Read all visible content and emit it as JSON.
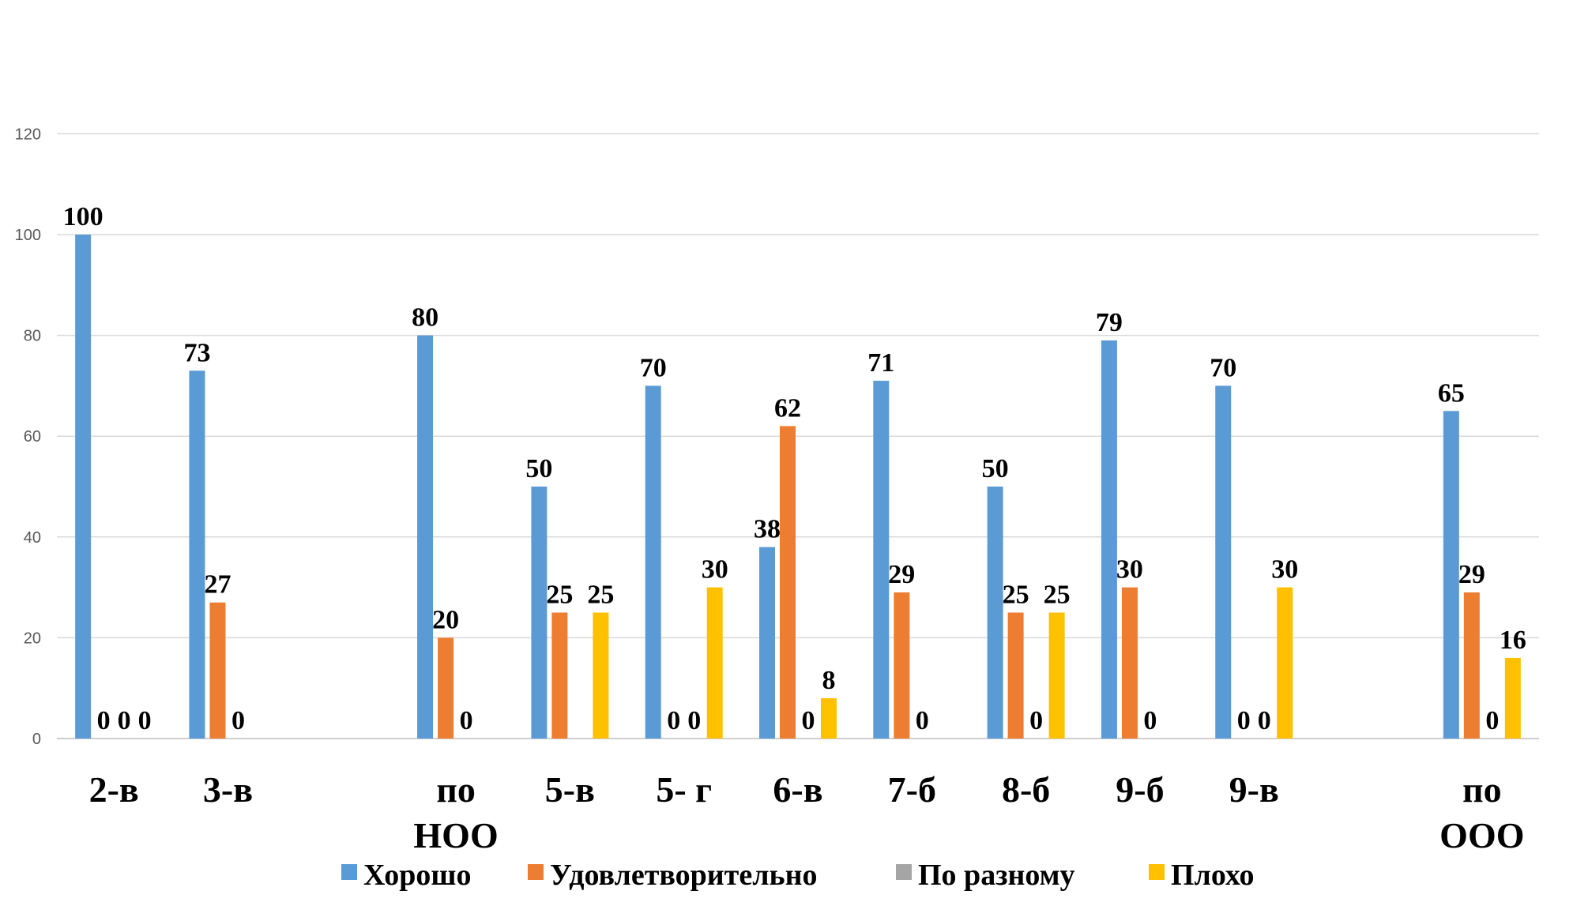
{
  "chart_data": {
    "type": "bar",
    "categories": [
      "2-в",
      "3-в",
      "",
      "по НОО",
      "5-в",
      "5- г",
      "6-в",
      "7-б",
      "8-б",
      "9-б",
      "9-в",
      "",
      "по ООО"
    ],
    "series": [
      {
        "name": "Хорошо",
        "color": "#5b9bd5",
        "values": [
          100,
          73,
          null,
          80,
          50,
          70,
          38,
          71,
          50,
          79,
          70,
          null,
          65
        ],
        "labels": [
          "100",
          "73",
          "",
          "80",
          "50",
          "70",
          "38",
          "71",
          "50",
          "79",
          "70",
          "",
          "65"
        ]
      },
      {
        "name": "Удовлетворительно",
        "color": "#ed7d31",
        "values": [
          0,
          27,
          null,
          20,
          25,
          0,
          62,
          29,
          25,
          30,
          0,
          null,
          29
        ],
        "labels": [
          "0",
          "27",
          "",
          "20",
          "25",
          "0",
          "62",
          "29",
          "25",
          "30",
          "0",
          "",
          "29"
        ]
      },
      {
        "name": "По разному",
        "color": "#a5a5a5",
        "values": [
          0,
          0,
          null,
          0,
          0,
          0,
          0,
          0,
          0,
          0,
          0,
          null,
          0
        ],
        "labels": [
          "0",
          "0",
          "",
          "0",
          "",
          "0",
          "0",
          "0",
          "0",
          "0",
          "0",
          "",
          "0"
        ]
      },
      {
        "name": "Плохо",
        "color": "#ffc000",
        "values": [
          0,
          null,
          null,
          null,
          25,
          30,
          8,
          null,
          25,
          null,
          30,
          null,
          16
        ],
        "labels": [
          "0",
          "",
          "",
          "",
          "25",
          "30",
          "8",
          "",
          "25",
          "",
          "30",
          "",
          "16"
        ]
      }
    ],
    "yticks": [
      "0",
      "20",
      "40",
      "60",
      "80",
      "100",
      "120"
    ],
    "ylim": [
      0,
      145
    ],
    "grid": true,
    "legend_position": "bottom",
    "title": "",
    "xlabel": "",
    "ylabel": ""
  }
}
